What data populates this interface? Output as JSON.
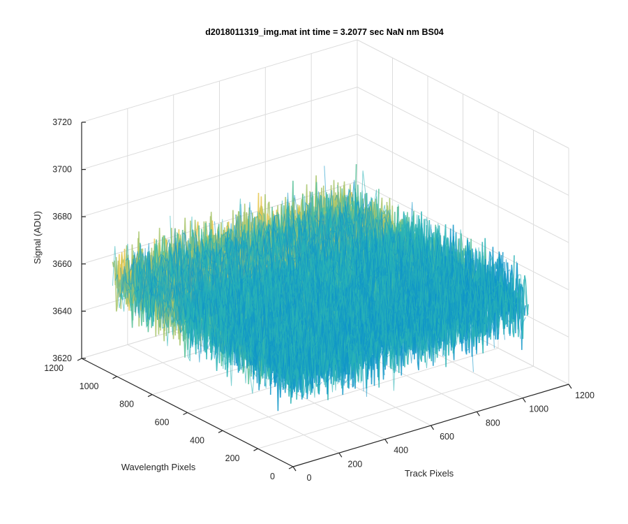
{
  "chart_data": {
    "type": "surface",
    "title": "d2018011319_img.mat int time = 3.2077 sec  NaN nm BS04",
    "xlabel": "Track Pixels",
    "ylabel": "Wavelength Pixels",
    "zlabel": "Signal (ADU)",
    "xlim": [
      0,
      1200
    ],
    "ylim": [
      0,
      1200
    ],
    "zlim": [
      3620,
      3720
    ],
    "x_ticks": [
      "0",
      "200",
      "400",
      "600",
      "800",
      "1000",
      "1200"
    ],
    "y_ticks": [
      "0",
      "200",
      "400",
      "600",
      "800",
      "1000",
      "1200"
    ],
    "z_ticks": [
      "3620",
      "3640",
      "3660",
      "3680",
      "3700",
      "3720"
    ],
    "data_extent": {
      "x": [
        0,
        1024
      ],
      "y": [
        0,
        1024
      ]
    },
    "signal_mean": 3660,
    "signal_noise_range": [
      3635,
      3700
    ],
    "colormap": [
      "#0072bd",
      "#1196c8",
      "#2ab3b5",
      "#56c096",
      "#a8c46a",
      "#e6c64a"
    ],
    "grid": true
  }
}
